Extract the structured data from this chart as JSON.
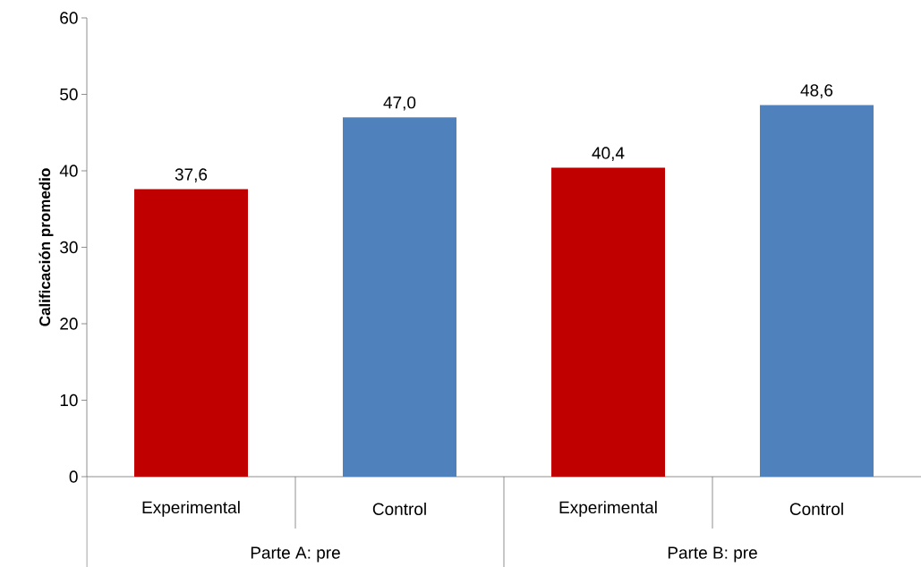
{
  "chart_data": {
    "type": "bar",
    "ylabel": "Calificación promedio",
    "categories": [
      "Experimental",
      "Control",
      "Experimental",
      "Control"
    ],
    "values": [
      37.6,
      47.0,
      40.4,
      48.6
    ],
    "colors": [
      "#c00000",
      "#4f81bd",
      "#c00000",
      "#4f81bd"
    ],
    "value_labels": [
      "37,6",
      "47,0",
      "40,4",
      "48,6"
    ],
    "annotations": [
      "Parte A: pre",
      "Parte B: pre"
    ],
    "ylim": [
      0,
      60
    ],
    "yticks": [
      0,
      10,
      20,
      30,
      40,
      50,
      60
    ]
  }
}
